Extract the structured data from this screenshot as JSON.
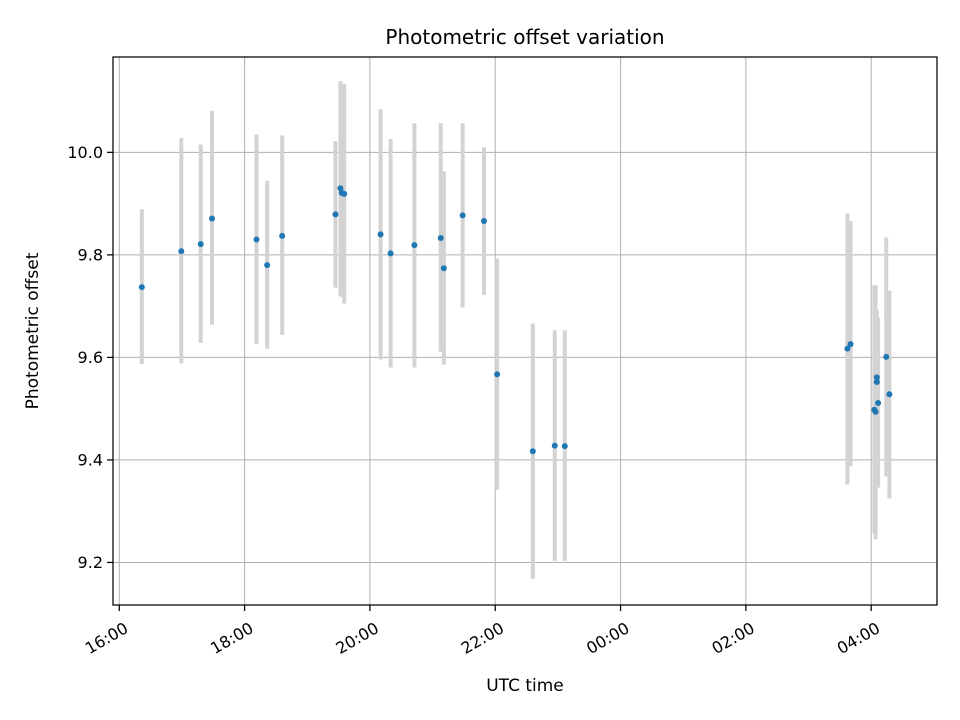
{
  "chart_data": {
    "type": "scatter",
    "title": "Photometric offset variation",
    "xlabel": "UTC time",
    "ylabel": "Photometric offset",
    "x_axis": {
      "unit": "hours since 16:00 UTC",
      "range": [
        -0.1,
        13.05
      ],
      "ticks": [
        {
          "x": 0,
          "label": "16:00"
        },
        {
          "x": 2,
          "label": "18:00"
        },
        {
          "x": 4,
          "label": "20:00"
        },
        {
          "x": 6,
          "label": "22:00"
        },
        {
          "x": 8,
          "label": "00:00"
        },
        {
          "x": 10,
          "label": "02:00"
        },
        {
          "x": 12,
          "label": "04:00"
        }
      ]
    },
    "y_axis": {
      "range": [
        9.117,
        10.186
      ],
      "ticks": [
        {
          "y": 9.2,
          "label": "9.2"
        },
        {
          "y": 9.4,
          "label": "9.4"
        },
        {
          "y": 9.6,
          "label": "9.6"
        },
        {
          "y": 9.8,
          "label": "9.8"
        },
        {
          "y": 10.0,
          "label": "10.0"
        }
      ]
    },
    "grid": true,
    "marker_color": "#1f77b4",
    "errorbar_color": "#d3d3d3",
    "points": [
      {
        "x": 0.36,
        "y": 9.737,
        "ylo": 9.587,
        "yhi": 9.889
      },
      {
        "x": 0.99,
        "y": 9.807,
        "ylo": 9.588,
        "yhi": 10.028
      },
      {
        "x": 1.3,
        "y": 9.821,
        "ylo": 9.628,
        "yhi": 10.015
      },
      {
        "x": 1.48,
        "y": 9.871,
        "ylo": 9.664,
        "yhi": 10.081
      },
      {
        "x": 2.19,
        "y": 9.83,
        "ylo": 9.626,
        "yhi": 10.035
      },
      {
        "x": 2.36,
        "y": 9.78,
        "ylo": 9.617,
        "yhi": 9.945
      },
      {
        "x": 2.6,
        "y": 9.837,
        "ylo": 9.644,
        "yhi": 10.033
      },
      {
        "x": 3.45,
        "y": 9.879,
        "ylo": 9.736,
        "yhi": 10.022
      },
      {
        "x": 3.53,
        "y": 9.93,
        "ylo": 9.72,
        "yhi": 10.139
      },
      {
        "x": 3.55,
        "y": 9.921,
        "ylo": 9.718,
        "yhi": 10.124
      },
      {
        "x": 3.59,
        "y": 9.919,
        "ylo": 9.705,
        "yhi": 10.133
      },
      {
        "x": 4.17,
        "y": 9.84,
        "ylo": 9.596,
        "yhi": 10.084
      },
      {
        "x": 4.33,
        "y": 9.803,
        "ylo": 9.58,
        "yhi": 10.026
      },
      {
        "x": 4.71,
        "y": 9.819,
        "ylo": 9.58,
        "yhi": 10.057
      },
      {
        "x": 5.13,
        "y": 9.833,
        "ylo": 9.611,
        "yhi": 10.057
      },
      {
        "x": 5.18,
        "y": 9.774,
        "ylo": 9.586,
        "yhi": 9.963
      },
      {
        "x": 5.48,
        "y": 9.877,
        "ylo": 9.697,
        "yhi": 10.057
      },
      {
        "x": 5.82,
        "y": 9.866,
        "ylo": 9.722,
        "yhi": 10.01
      },
      {
        "x": 6.03,
        "y": 9.567,
        "ylo": 9.342,
        "yhi": 9.793
      },
      {
        "x": 6.6,
        "y": 9.417,
        "ylo": 9.168,
        "yhi": 9.666
      },
      {
        "x": 6.95,
        "y": 9.428,
        "ylo": 9.203,
        "yhi": 9.653
      },
      {
        "x": 7.11,
        "y": 9.427,
        "ylo": 9.203,
        "yhi": 9.653
      },
      {
        "x": 11.62,
        "y": 9.617,
        "ylo": 9.352,
        "yhi": 9.881
      },
      {
        "x": 11.67,
        "y": 9.626,
        "ylo": 9.388,
        "yhi": 9.866
      },
      {
        "x": 12.05,
        "y": 9.498,
        "ylo": 9.257,
        "yhi": 9.74
      },
      {
        "x": 12.07,
        "y": 9.494,
        "ylo": 9.245,
        "yhi": 9.741
      },
      {
        "x": 12.09,
        "y": 9.561,
        "ylo": 9.429,
        "yhi": 9.693
      },
      {
        "x": 12.09,
        "y": 9.552,
        "ylo": 9.427,
        "yhi": 9.679
      },
      {
        "x": 12.11,
        "y": 9.511,
        "ylo": 9.346,
        "yhi": 9.677
      },
      {
        "x": 12.24,
        "y": 9.601,
        "ylo": 9.368,
        "yhi": 9.834
      },
      {
        "x": 12.29,
        "y": 9.528,
        "ylo": 9.325,
        "yhi": 9.73
      }
    ]
  }
}
